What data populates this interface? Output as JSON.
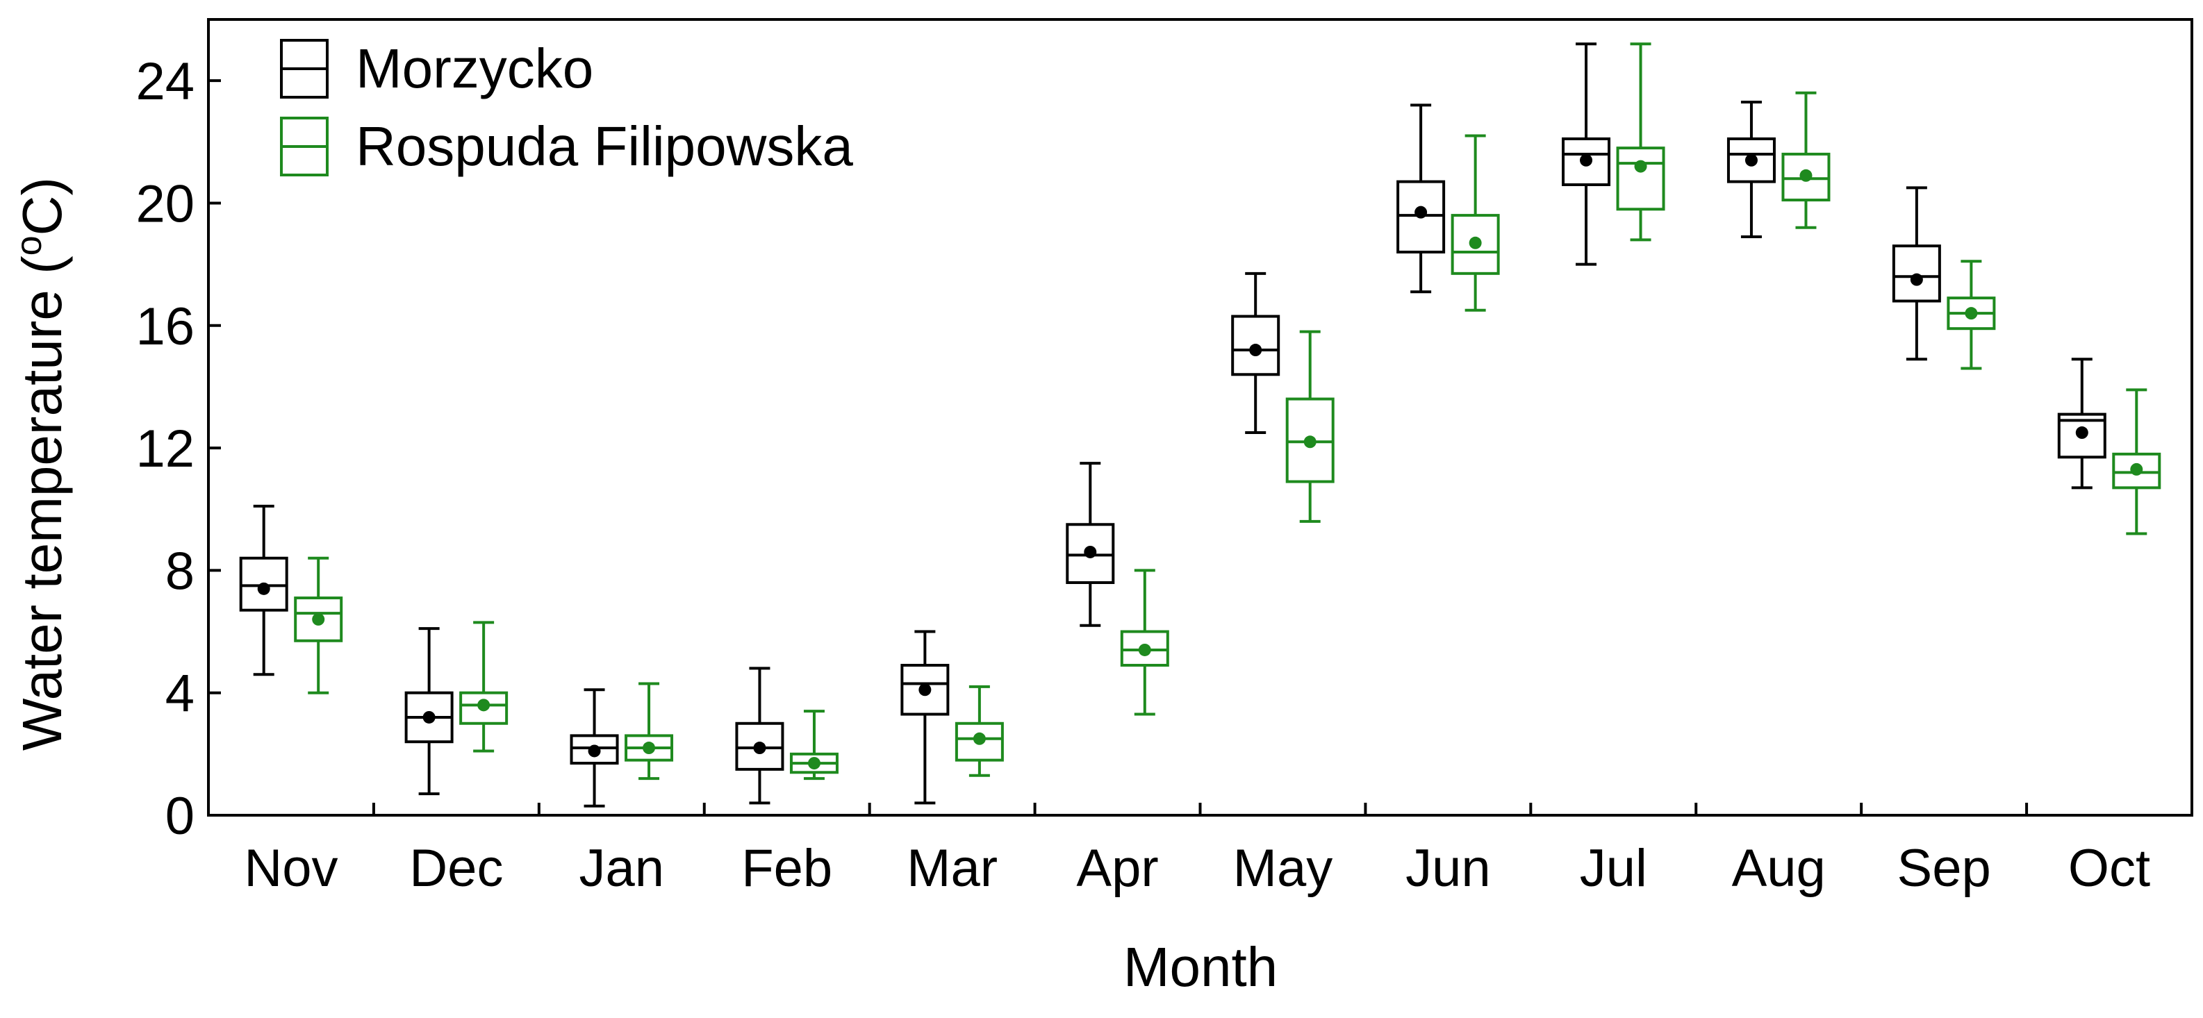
{
  "chart_data": {
    "type": "boxplot",
    "title": "",
    "xlabel": "Month",
    "ylabel_prefix": "Water temperature (",
    "ylabel_superscript": "o",
    "ylabel_suffix": "C)",
    "ylim": [
      0,
      26
    ],
    "yticks": [
      "0",
      "4",
      "8",
      "12",
      "16",
      "20",
      "24"
    ],
    "categories": [
      "Nov",
      "Dec",
      "Jan",
      "Feb",
      "Mar",
      "Apr",
      "May",
      "Jun",
      "Jul",
      "Aug",
      "Sep",
      "Oct"
    ],
    "legend_position": "top-left",
    "grid": false,
    "series": [
      {
        "name": "Morzycko",
        "color": "#000000",
        "boxes": [
          {
            "min": 4.6,
            "q1": 6.7,
            "median": 7.5,
            "q3": 8.4,
            "max": 10.1,
            "mean": 7.4
          },
          {
            "min": 0.7,
            "q1": 2.4,
            "median": 3.2,
            "q3": 4.0,
            "max": 6.1,
            "mean": 3.2
          },
          {
            "min": 0.3,
            "q1": 1.7,
            "median": 2.2,
            "q3": 2.6,
            "max": 4.1,
            "mean": 2.1
          },
          {
            "min": 0.4,
            "q1": 1.5,
            "median": 2.2,
            "q3": 3.0,
            "max": 4.8,
            "mean": 2.2
          },
          {
            "min": 0.4,
            "q1": 3.3,
            "median": 4.3,
            "q3": 4.9,
            "max": 6.0,
            "mean": 4.1
          },
          {
            "min": 6.2,
            "q1": 7.6,
            "median": 8.5,
            "q3": 9.5,
            "max": 11.5,
            "mean": 8.6
          },
          {
            "min": 12.5,
            "q1": 14.4,
            "median": 15.2,
            "q3": 16.3,
            "max": 17.7,
            "mean": 15.2
          },
          {
            "min": 17.1,
            "q1": 18.4,
            "median": 19.6,
            "q3": 20.7,
            "max": 23.2,
            "mean": 19.7
          },
          {
            "min": 18.0,
            "q1": 20.6,
            "median": 21.6,
            "q3": 22.1,
            "max": 25.2,
            "mean": 21.4
          },
          {
            "min": 18.9,
            "q1": 20.7,
            "median": 21.6,
            "q3": 22.1,
            "max": 23.3,
            "mean": 21.4
          },
          {
            "min": 14.9,
            "q1": 16.8,
            "median": 17.6,
            "q3": 18.6,
            "max": 20.5,
            "mean": 17.5
          },
          {
            "min": 10.7,
            "q1": 11.7,
            "median": 12.9,
            "q3": 13.1,
            "max": 14.9,
            "mean": 12.5
          }
        ]
      },
      {
        "name": "Rospuda Filipowska",
        "color": "#1e8a1e",
        "boxes": [
          {
            "min": 4.0,
            "q1": 5.7,
            "median": 6.6,
            "q3": 7.1,
            "max": 8.4,
            "mean": 6.4
          },
          {
            "min": 2.1,
            "q1": 3.0,
            "median": 3.6,
            "q3": 4.0,
            "max": 6.3,
            "mean": 3.6
          },
          {
            "min": 1.2,
            "q1": 1.8,
            "median": 2.2,
            "q3": 2.6,
            "max": 4.3,
            "mean": 2.2
          },
          {
            "min": 1.2,
            "q1": 1.4,
            "median": 1.7,
            "q3": 2.0,
            "max": 3.4,
            "mean": 1.7
          },
          {
            "min": 1.3,
            "q1": 1.8,
            "median": 2.5,
            "q3": 3.0,
            "max": 4.2,
            "mean": 2.5
          },
          {
            "min": 3.3,
            "q1": 4.9,
            "median": 5.4,
            "q3": 6.0,
            "max": 8.0,
            "mean": 5.4
          },
          {
            "min": 9.6,
            "q1": 10.9,
            "median": 12.2,
            "q3": 13.6,
            "max": 15.8,
            "mean": 12.2
          },
          {
            "min": 16.5,
            "q1": 17.7,
            "median": 18.4,
            "q3": 19.6,
            "max": 22.2,
            "mean": 18.7
          },
          {
            "min": 18.8,
            "q1": 19.8,
            "median": 21.3,
            "q3": 21.8,
            "max": 25.2,
            "mean": 21.2
          },
          {
            "min": 19.2,
            "q1": 20.1,
            "median": 20.8,
            "q3": 21.6,
            "max": 23.6,
            "mean": 20.9
          },
          {
            "min": 14.6,
            "q1": 15.9,
            "median": 16.4,
            "q3": 16.9,
            "max": 18.1,
            "mean": 16.4
          },
          {
            "min": 9.2,
            "q1": 10.7,
            "median": 11.2,
            "q3": 11.8,
            "max": 13.9,
            "mean": 11.3
          }
        ]
      }
    ]
  }
}
